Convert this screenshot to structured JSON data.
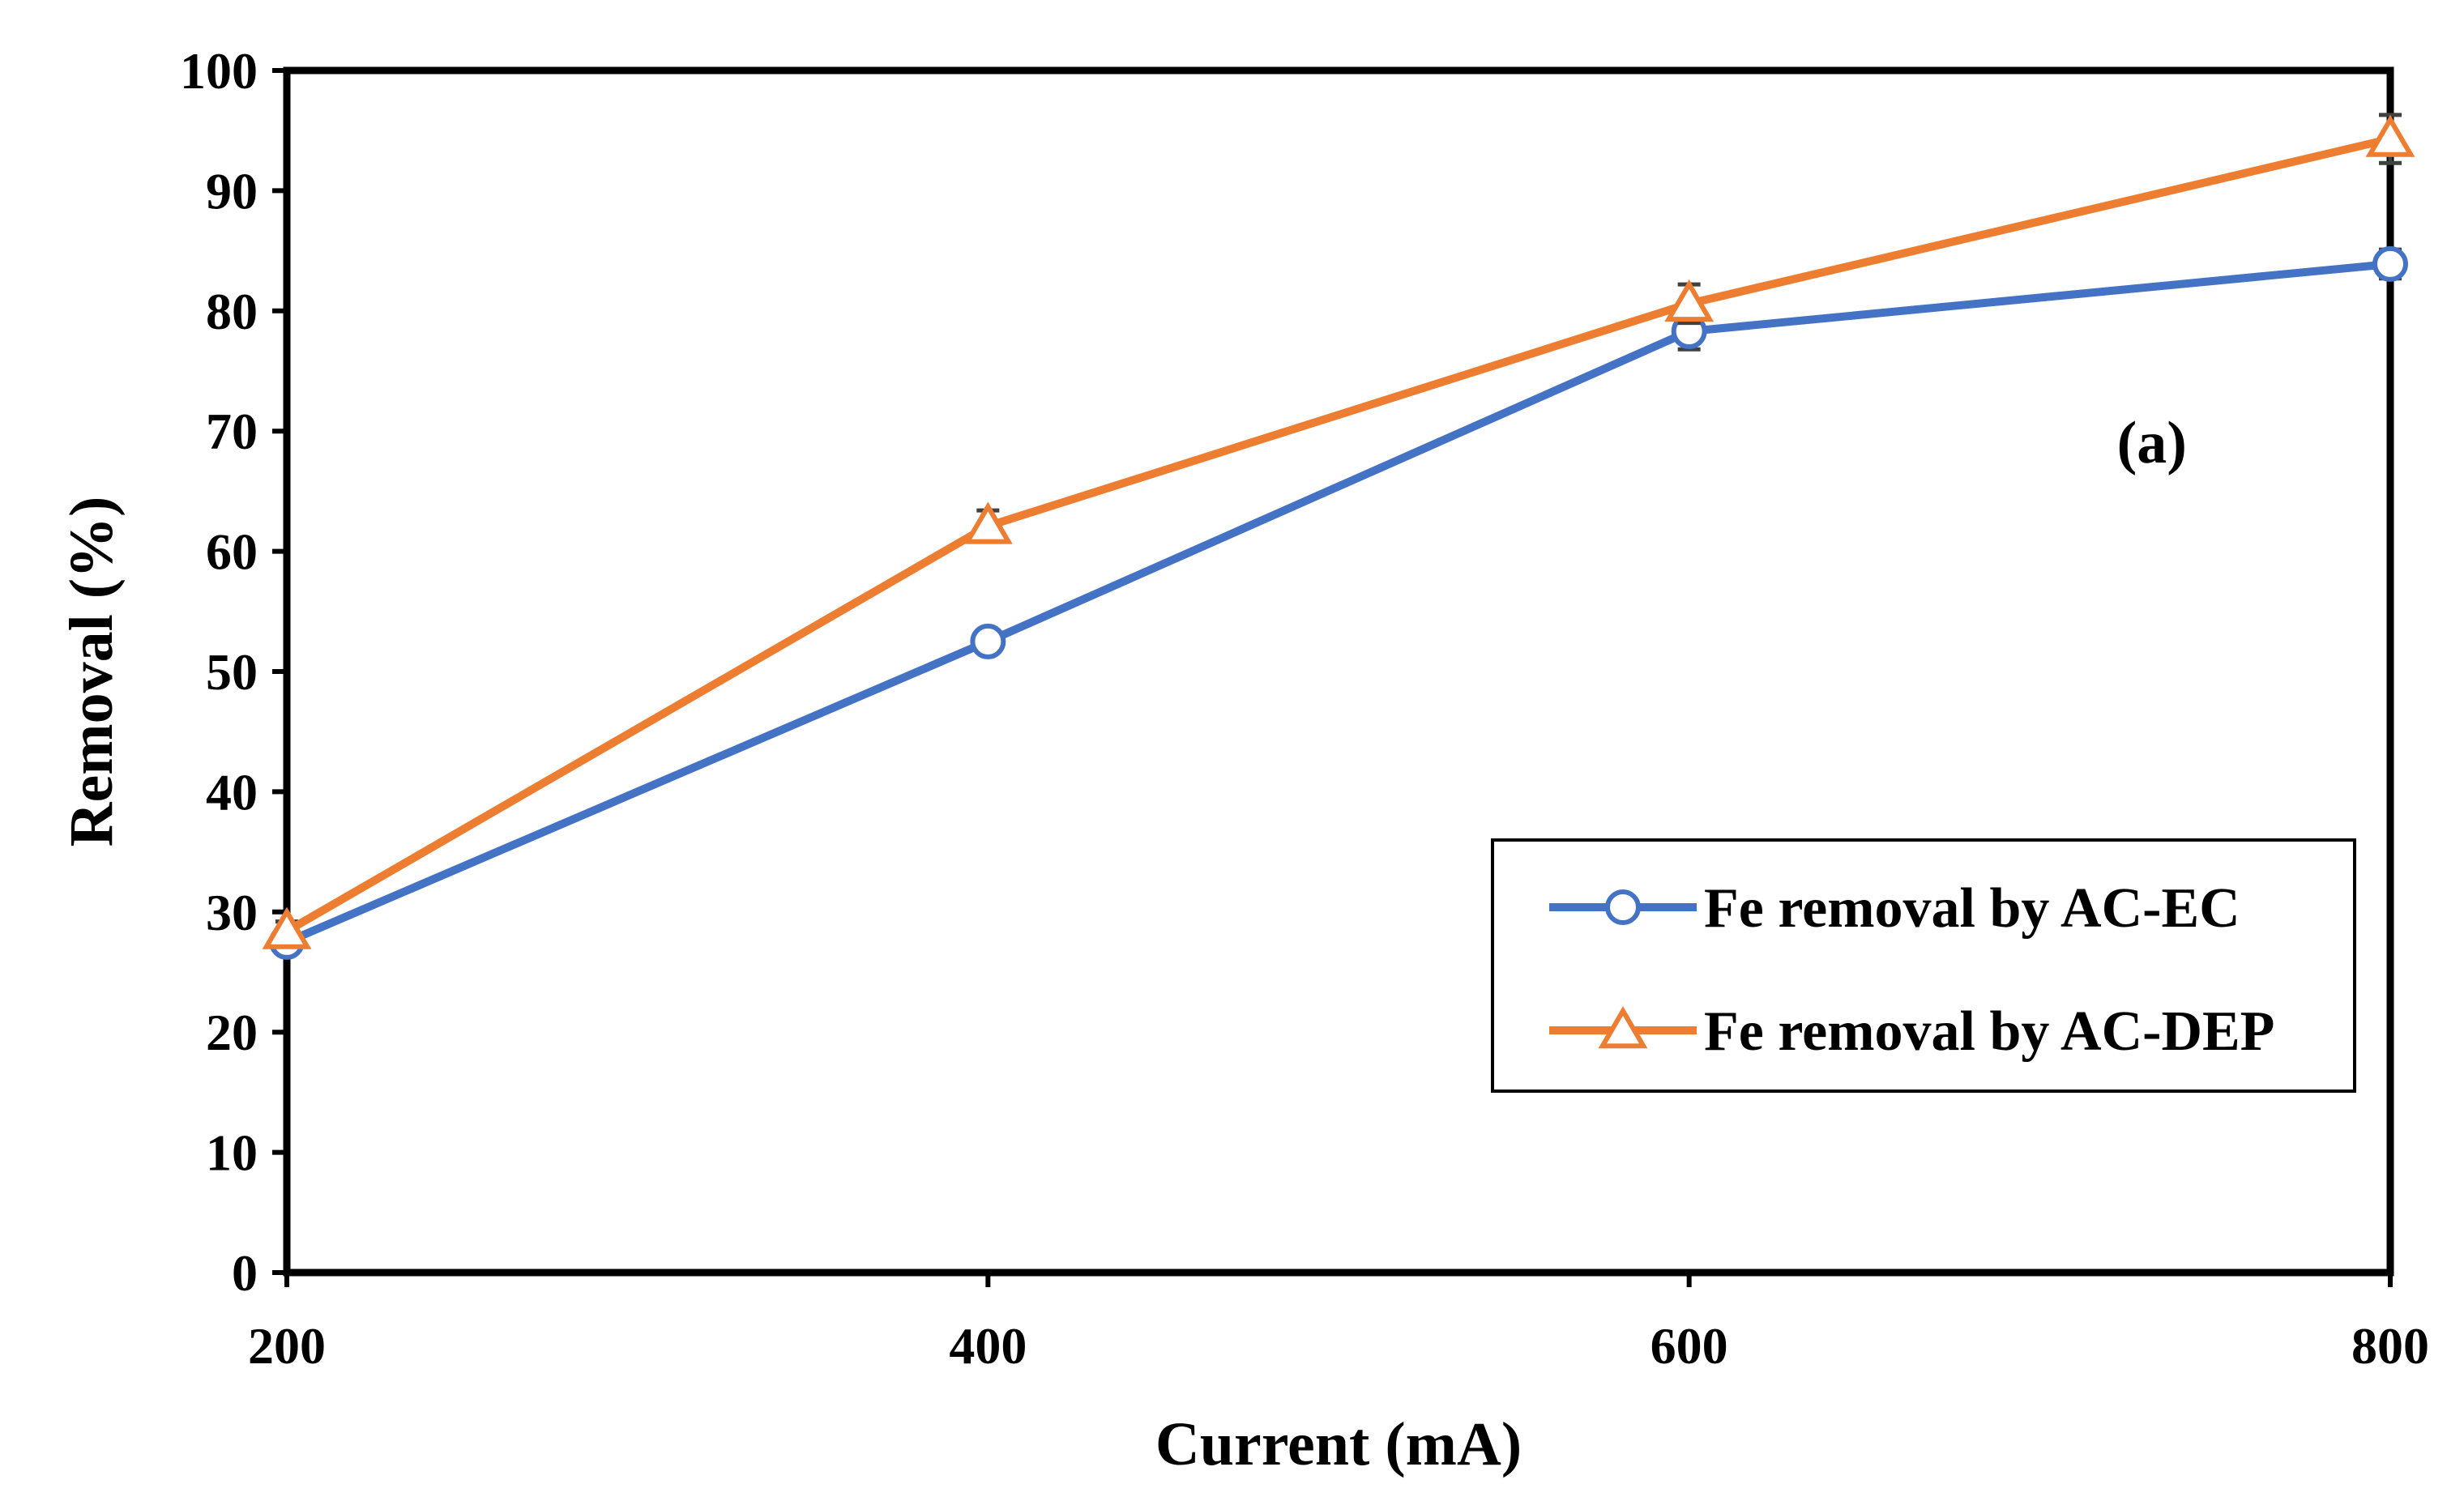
{
  "chart_data": {
    "type": "line",
    "title": "",
    "xlabel": "Current (mA)",
    "ylabel": "Removal (%)",
    "x": [
      200,
      400,
      600,
      800
    ],
    "xlim": [
      200,
      800
    ],
    "ylim": [
      0,
      100
    ],
    "x_ticks": [
      "200",
      "400",
      "600",
      "800"
    ],
    "y_ticks": [
      "0",
      "10",
      "20",
      "30",
      "40",
      "50",
      "60",
      "70",
      "80",
      "90",
      "100"
    ],
    "grid": false,
    "legend_position": "right-bottom",
    "annotation": "(a)",
    "series": [
      {
        "name": "Fe removal by AC-EC",
        "color": "#4472C4",
        "marker": "circle",
        "values": [
          27.5,
          52.5,
          78.3,
          83.9
        ],
        "error": [
          0.8,
          0.8,
          1.5,
          1.2
        ]
      },
      {
        "name": "Fe removal by AC-DEP",
        "color": "#ED7D31",
        "marker": "triangle",
        "values": [
          28.4,
          62.1,
          80.6,
          94.3
        ],
        "error": [
          0.8,
          1.3,
          1.6,
          2.0
        ]
      }
    ]
  }
}
